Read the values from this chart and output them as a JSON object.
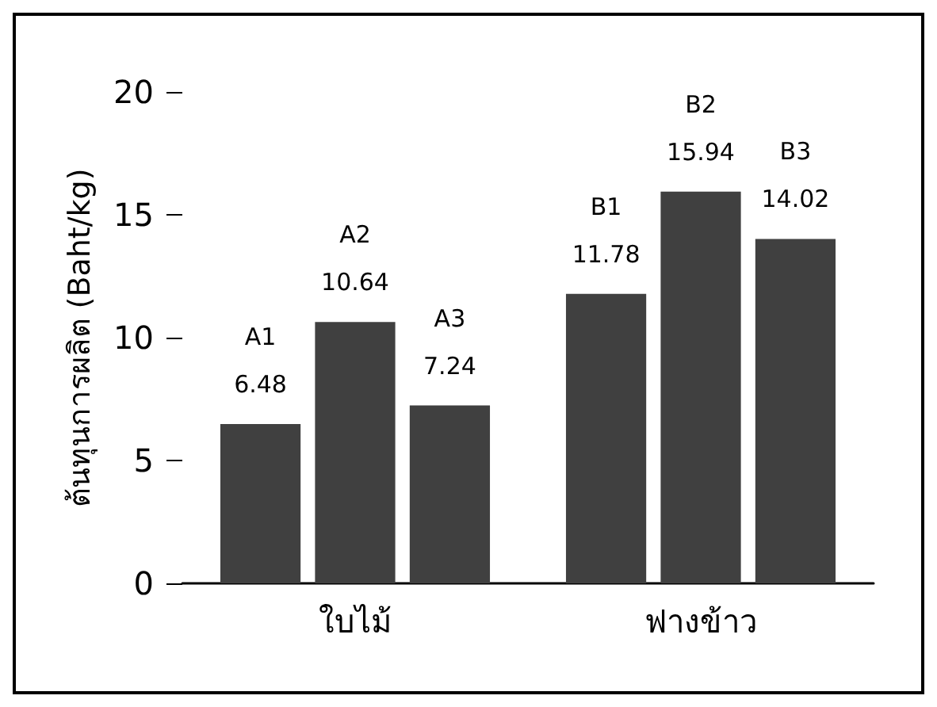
{
  "chart_data": {
    "type": "bar",
    "ylabel": "ต้นทุนการผลิต (Baht/kg)",
    "categories": [
      "ใบไม้",
      "ฟางข้าว"
    ],
    "series": [
      {
        "color": "#404040",
        "values": [
          6.48,
          11.78
        ],
        "value_labels": [
          "A1\n6.48",
          "B1\n11.78"
        ]
      },
      {
        "color": "#404040",
        "values": [
          10.64,
          15.94
        ],
        "value_labels": [
          "A2\n10.64",
          "B2\n15.94"
        ]
      },
      {
        "color": "#404040",
        "values": [
          7.24,
          14.02
        ],
        "value_labels": [
          "A3\n7.24",
          "B3\n14.02"
        ]
      }
    ],
    "ylim": [
      0,
      20
    ],
    "yticks": [
      0,
      5,
      10,
      15,
      20
    ],
    "grid": false
  }
}
